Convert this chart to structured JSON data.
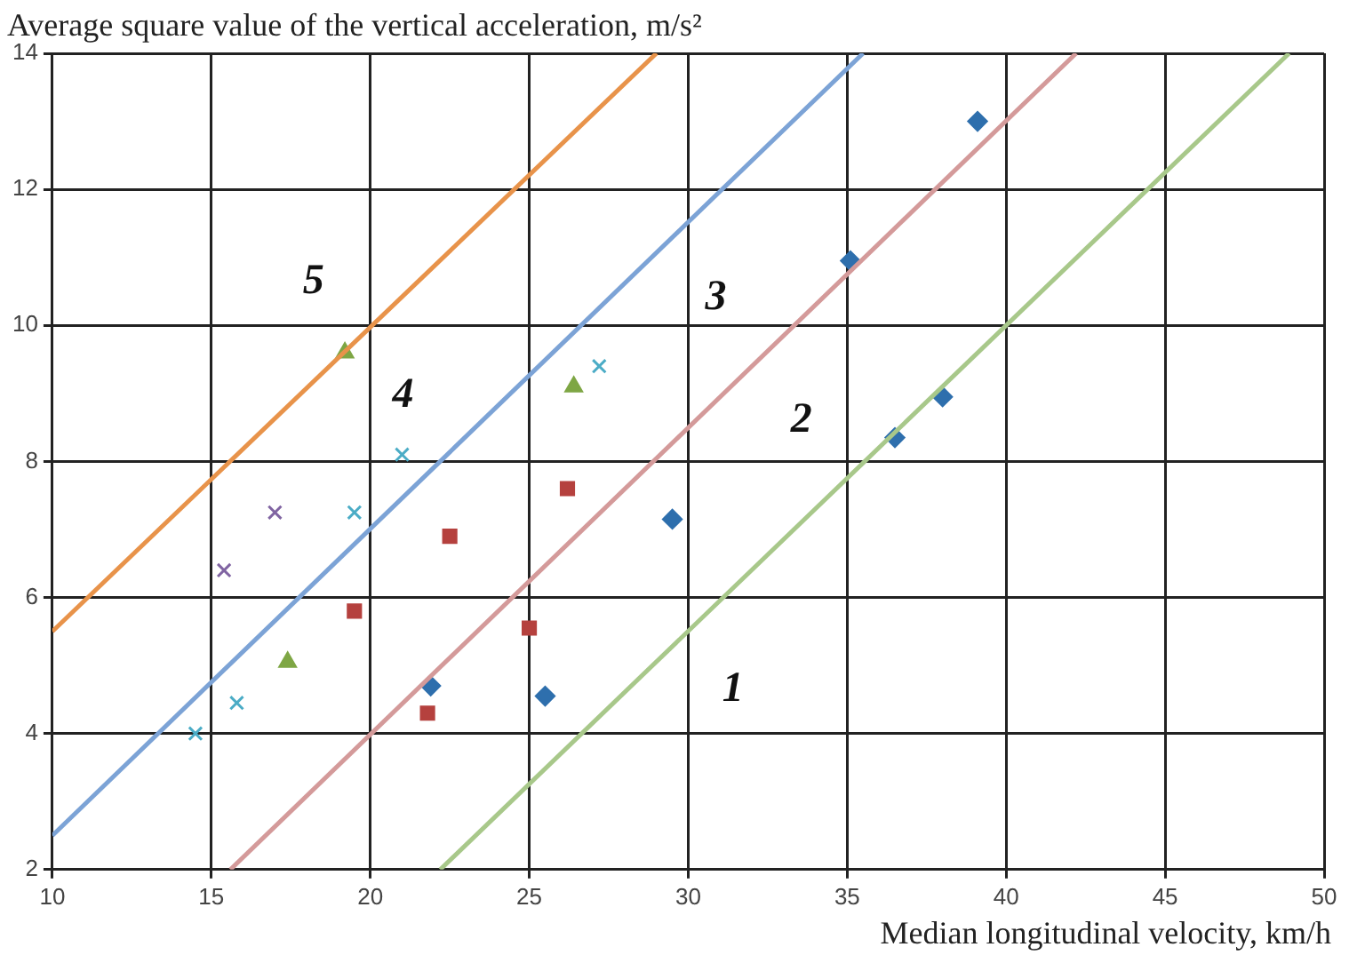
{
  "chart_data": {
    "type": "scatter",
    "xlabel": "Median longitudinal velocity, km/h",
    "ylabel": "Average square value of the vertical acceleration, m/s²",
    "xlim": [
      10,
      50
    ],
    "xticks": [
      10,
      15,
      20,
      25,
      30,
      35,
      40,
      45,
      50
    ],
    "ylim": [
      2,
      14
    ],
    "yticks": [
      2,
      4,
      6,
      8,
      10,
      12,
      14
    ],
    "grid": true,
    "legend": false,
    "series": [
      {
        "type": "line",
        "color": "#e8934a",
        "marker": "none",
        "x": [
          10,
          29
        ],
        "values": [
          5.5,
          14
        ]
      },
      {
        "type": "line",
        "color": "#7ca3d6",
        "marker": "none",
        "x": [
          10,
          35.5
        ],
        "values": [
          2.5,
          14
        ]
      },
      {
        "type": "line",
        "color": "#d49a9a",
        "marker": "none",
        "x": [
          15.6,
          42.2
        ],
        "values": [
          2,
          14
        ]
      },
      {
        "type": "line",
        "color": "#a8c88a",
        "marker": "none",
        "x": [
          22.2,
          48.9
        ],
        "values": [
          2,
          14
        ]
      },
      {
        "type": "scatter",
        "color": "#2e6fad",
        "marker": "diamond",
        "x": [
          21.9,
          25.5,
          29.5,
          39.1,
          35.1,
          38.0,
          36.5
        ],
        "values": [
          4.7,
          4.55,
          7.15,
          13.0,
          10.95,
          8.95,
          8.35
        ]
      },
      {
        "type": "scatter",
        "color": "#b5413e",
        "marker": "square",
        "x": [
          26.2,
          22.5,
          19.5,
          25.0,
          21.8
        ],
        "values": [
          7.6,
          6.9,
          5.8,
          5.55,
          4.3
        ]
      },
      {
        "type": "scatter",
        "color": "#7ea644",
        "marker": "triangle",
        "x": [
          19.2,
          26.4,
          17.4
        ],
        "values": [
          9.6,
          9.1,
          5.05
        ]
      },
      {
        "type": "scatter",
        "color": "#4bacc6",
        "marker": "cross",
        "x": [
          27.2,
          21.0,
          19.5,
          15.8,
          14.5
        ],
        "values": [
          9.4,
          8.1,
          7.25,
          4.45,
          4.0
        ]
      },
      {
        "type": "scatter",
        "color": "#8064a2",
        "marker": "cross",
        "x": [
          17.0,
          15.4
        ],
        "values": [
          7.25,
          6.4
        ]
      }
    ],
    "annotations": [
      "5",
      "4",
      "3",
      "2",
      "1"
    ]
  }
}
